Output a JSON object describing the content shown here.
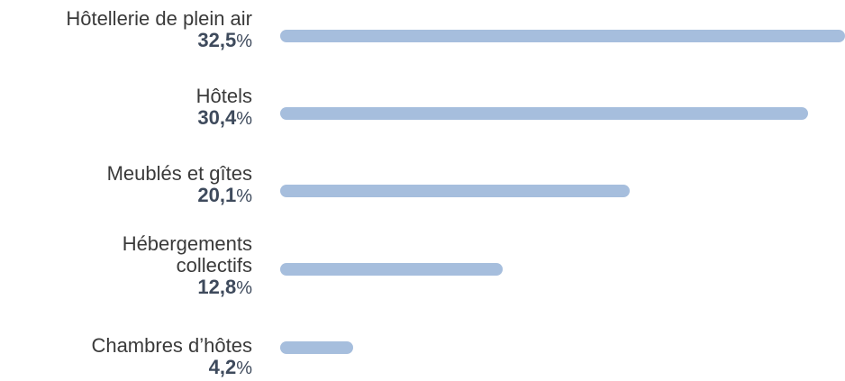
{
  "chart_data": {
    "type": "bar",
    "orientation": "horizontal",
    "categories": [
      [
        "Hôtellerie de plein air"
      ],
      [
        "Hôtels"
      ],
      [
        "Meublés et gîtes"
      ],
      [
        "Hébergements",
        "collectifs"
      ],
      [
        "Chambres d’hôtes"
      ]
    ],
    "values": [
      32.5,
      30.4,
      20.1,
      12.8,
      4.2
    ],
    "value_labels": [
      "32,5",
      "30,4",
      "20,1",
      "12,8",
      "4,2"
    ],
    "unit": "%",
    "xlim": [
      0,
      32.5
    ],
    "grid": false,
    "bar_color": "#a6bedd",
    "value_color": "#3e4a5c",
    "label_color": "#3a3a3a"
  }
}
